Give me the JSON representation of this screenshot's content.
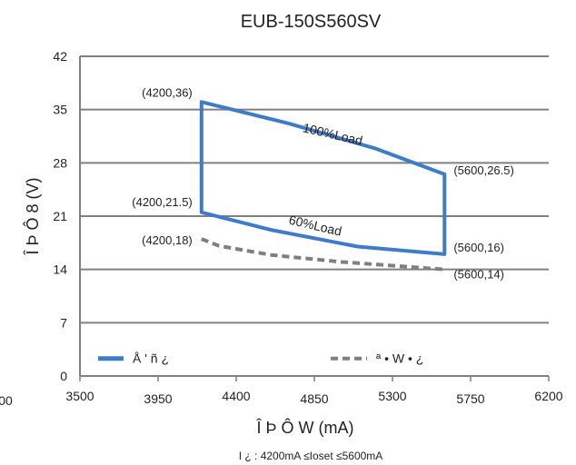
{
  "chart_data": {
    "type": "line",
    "title": "EUB-150S560SV",
    "xlabel": "Î Þ Ô W (mA)",
    "ylabel": "Î Þ Ô 8  (V)",
    "note": "I ¿ :  4200mA ≤Ioset ≤5600mA",
    "xlim": [
      3500,
      6200
    ],
    "ylim": [
      0,
      42
    ],
    "x_ticks": [
      "3500",
      "3950",
      "4400",
      "4850",
      "5300",
      "5750",
      "6200"
    ],
    "x_tick_values": [
      3500,
      3950,
      4400,
      4850,
      5300,
      5750,
      6200
    ],
    "extra_tick_label": "00",
    "y_ticks": [
      "0",
      "7",
      "14",
      "21",
      "28",
      "35",
      "42"
    ],
    "y_tick_values": [
      0,
      7,
      14,
      21,
      28,
      35,
      42
    ],
    "grid": "horizontal",
    "legend_position": "bottom",
    "colors": {
      "solid": "#3f7cc8",
      "dashed": "#7f7f7f",
      "grid": "#808080"
    },
    "series": [
      {
        "name": "Å  ' ñ  ¿",
        "style": "solid",
        "points": [
          [
            4200,
            21.5
          ],
          [
            4200,
            36
          ],
          [
            4700,
            33.2
          ],
          [
            5200,
            29.9
          ],
          [
            5600,
            26.5
          ],
          [
            5600,
            16
          ],
          [
            5100,
            17
          ],
          [
            4600,
            19.2
          ],
          [
            4200,
            21.5
          ]
        ]
      },
      {
        "name": "ª • W •  ¿",
        "style": "dashed",
        "points": [
          [
            4200,
            18
          ],
          [
            4300,
            17.1
          ],
          [
            4600,
            15.9
          ],
          [
            5000,
            15
          ],
          [
            5300,
            14.5
          ],
          [
            5600,
            14
          ]
        ]
      }
    ],
    "annotations": [
      {
        "text": "(4200,36)",
        "x": 4200,
        "y": 36,
        "side": "left"
      },
      {
        "text": "(4200,21.5)",
        "x": 4200,
        "y": 21.5,
        "side": "left"
      },
      {
        "text": "(4200,18)",
        "x": 4200,
        "y": 18,
        "side": "left"
      },
      {
        "text": "(5600,26.5)",
        "x": 5600,
        "y": 26.5,
        "side": "right"
      },
      {
        "text": "(5600,16)",
        "x": 5600,
        "y": 16,
        "side": "right"
      },
      {
        "text": "(5600,14)",
        "x": 5600,
        "y": 14,
        "side": "right"
      }
    ],
    "curve_labels": [
      {
        "text": "100%Load",
        "x": 4950,
        "y": 31.2
      },
      {
        "text": "60%Load",
        "x": 4850,
        "y": 19.2
      }
    ]
  }
}
